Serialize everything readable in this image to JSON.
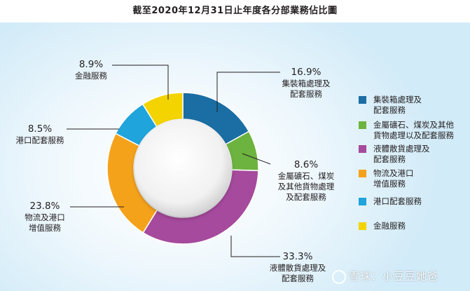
{
  "title": "截至2020年12月31日止年度各分部業務佔比圖",
  "chart_data": {
    "type": "pie",
    "title": "截至2020年12月31日止年度各分部業務佔比圖",
    "series": [
      {
        "name": "集裝箱處理及\n配套服務",
        "value": 16.9,
        "pct": "16.9%",
        "label": "集裝箱處理及\n配套服務",
        "color": "#1a6ea3"
      },
      {
        "name": "金屬礦石、煤炭及其他\n貨物處理以及配套服務",
        "value": 8.6,
        "pct": "8.6%",
        "label": "金屬礦石、煤炭\n及其他貨物處理\n及配套服務",
        "color": "#6db33f"
      },
      {
        "name": "液體散貨處理及\n配套服務",
        "value": 33.3,
        "pct": "33.3%",
        "label": "液體散貨處理及\n配套服務",
        "color": "#a54a9c"
      },
      {
        "name": "物流及港口\n增值服務",
        "value": 23.8,
        "pct": "23.8%",
        "label": "物流及港口\n增值服務",
        "color": "#f5a21b"
      },
      {
        "name": "港口配套服務",
        "value": 8.5,
        "pct": "8.5%",
        "label": "港口配套服務",
        "color": "#1fa4dc"
      },
      {
        "name": "金融服務",
        "value": 8.9,
        "pct": "8.9%",
        "label": "金融服務",
        "color": "#f3d300"
      }
    ],
    "legend_position": "right"
  },
  "watermark": "雪球：小豆豆她爸"
}
